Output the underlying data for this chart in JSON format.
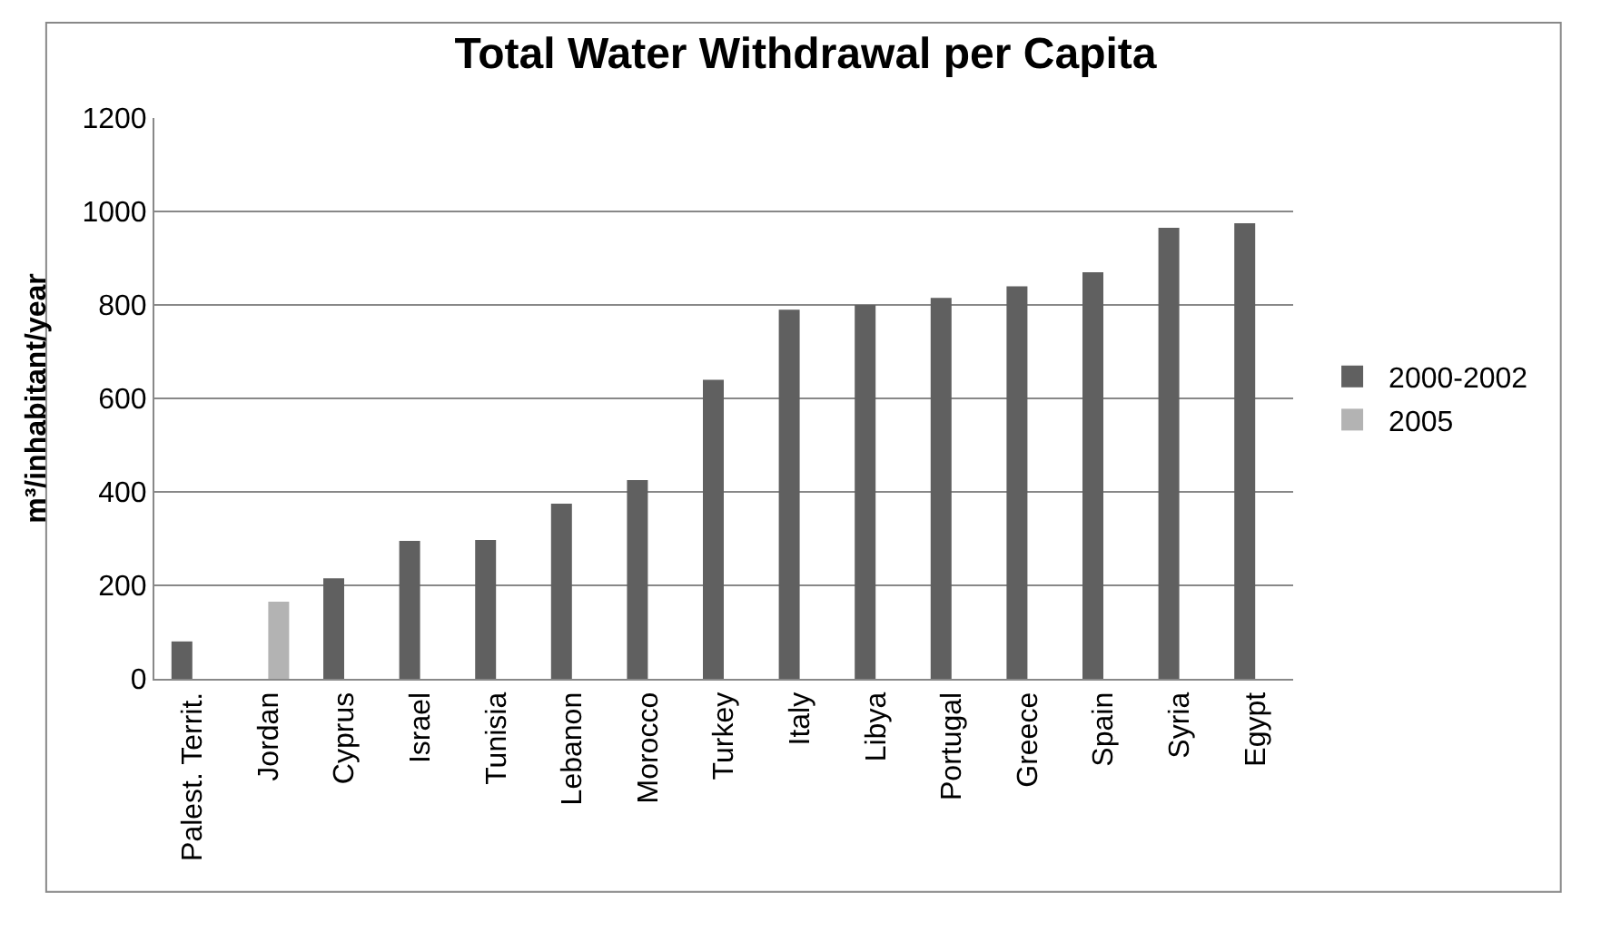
{
  "chart_data": {
    "type": "bar",
    "title": "Total Water Withdrawal per Capita",
    "ylabel": "m³/inhabitant/year",
    "categories": [
      "Palest. Territ.",
      "Jordan",
      "Cyprus",
      "Israel",
      "Tunisia",
      "Lebanon",
      "Morocco",
      "Turkey",
      "Italy",
      "Libya",
      "Portugal",
      "Greece",
      "Spain",
      "Syria",
      "Egypt"
    ],
    "series": [
      {
        "name": "2000-2002",
        "color": "#606060",
        "values": [
          80,
          null,
          215,
          295,
          297,
          375,
          425,
          640,
          790,
          800,
          815,
          840,
          870,
          965,
          975
        ]
      },
      {
        "name": "2005",
        "color": "#b3b3b3",
        "values": [
          null,
          165,
          null,
          null,
          null,
          null,
          null,
          null,
          null,
          null,
          null,
          null,
          null,
          null,
          null
        ]
      }
    ],
    "ylim": [
      0,
      1200
    ],
    "yticks": [
      0,
      200,
      400,
      600,
      800,
      1000,
      1200
    ],
    "grid": "y",
    "legend": "right"
  }
}
